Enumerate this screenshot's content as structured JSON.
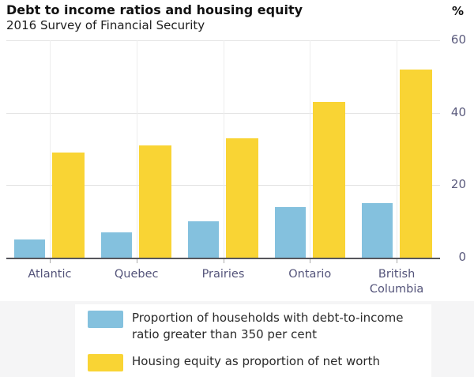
{
  "header": {
    "title": "Debt to income ratios and housing equity",
    "subtitle": "2016 Survey of Financial Security",
    "unit_label": "%"
  },
  "chart_data": {
    "type": "bar",
    "title": "Debt to income ratios and housing equity",
    "subtitle": "2016 Survey of Financial Security",
    "categories": [
      "Atlantic",
      "Quebec",
      "Prairies",
      "Ontario",
      "British Columbia"
    ],
    "series": [
      {
        "name": "Proportion of households with debt-to-income ratio greater than 350 per cent",
        "color": "#84c1de",
        "values": [
          5,
          7,
          10,
          14,
          15
        ]
      },
      {
        "name": "Housing equity as proportion of net worth",
        "color": "#f9d434",
        "values": [
          29,
          31,
          33,
          43,
          52
        ]
      }
    ],
    "xlabel": "",
    "ylabel": "%",
    "ylim": [
      0,
      60
    ],
    "yticks": [
      0,
      20,
      40,
      60
    ],
    "grid": true,
    "legend_position": "bottom"
  },
  "colors": {
    "grid": "#e4e4e4",
    "axis": "#56565c",
    "axis_label": "#54547a",
    "legend_background": "#f5f5f6"
  }
}
